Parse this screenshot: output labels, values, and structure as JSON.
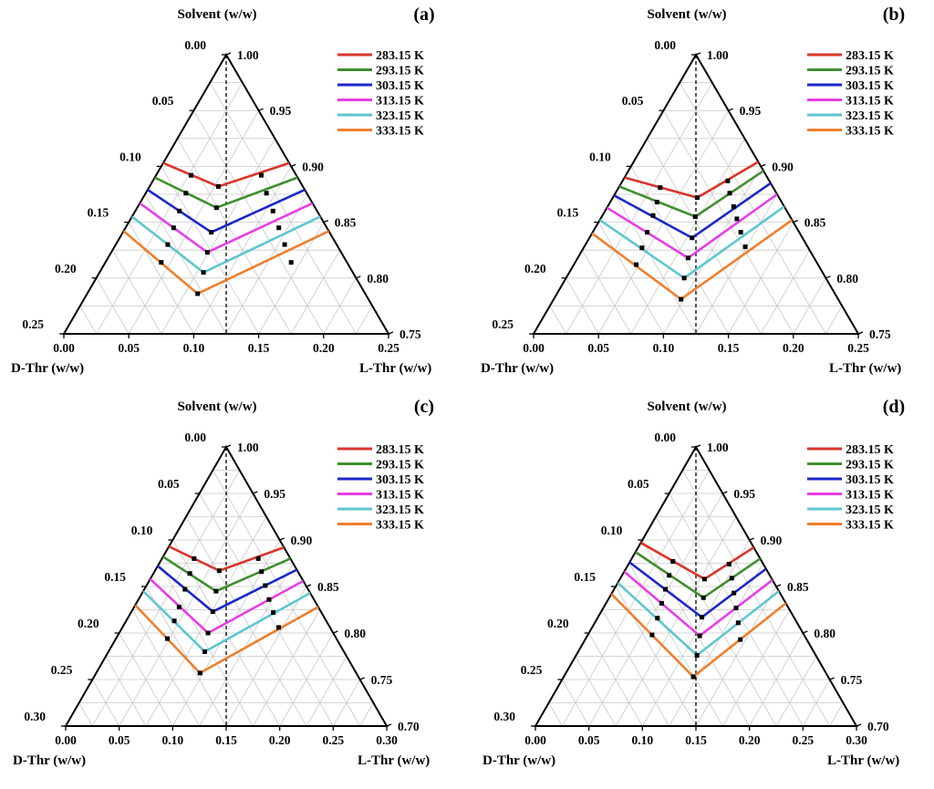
{
  "figure": {
    "temperatures": [
      "283.15 K",
      "293.15 K",
      "303.15 K",
      "313.15 K",
      "323.15 K",
      "333.15 K"
    ],
    "series_colors": [
      "#d9352b",
      "#3f8f2f",
      "#1d27c9",
      "#e63ee6",
      "#5ec6cf",
      "#ee7f2d"
    ],
    "axis_titles": {
      "top": "Solvent (w/w)",
      "left": "D-Thr (w/w)",
      "right": "L-Thr (w/w)"
    }
  },
  "chart_data": [
    {
      "type": "ternary",
      "panel_label": "(a)",
      "axes": {
        "top": "Solvent (w/w)",
        "left": "D-Thr (w/w)",
        "right": "L-Thr (w/w)"
      },
      "max_fraction": 0.25,
      "grid": true,
      "legend_position": "top-right",
      "dashed_line_at": 0.1375,
      "tick_labels": {
        "top_left": [
          "0.00",
          "0.05",
          "0.10",
          "0.15",
          "0.20",
          "0.25"
        ],
        "right": [
          "1.00",
          "0.95",
          "0.90",
          "0.85",
          "0.80",
          "0.75"
        ],
        "bottom": [
          "0.00",
          "0.05",
          "0.10",
          "0.15",
          "0.20",
          "0.25"
        ]
      },
      "series": [
        {
          "name": "283.15 K",
          "color": "#d9352b",
          "left_end": {
            "d": 0.097,
            "l": 0
          },
          "eutectic": {
            "d": 0.065,
            "l": 0.053
          },
          "right_end": {
            "d": 0,
            "l": 0.097
          },
          "points": [
            {
              "d": 0.081,
              "l": 0.027
            },
            {
              "d": 0.027,
              "l": 0.081
            }
          ]
        },
        {
          "name": "293.15 K",
          "color": "#3f8f2f",
          "left_end": {
            "d": 0.11,
            "l": 0
          },
          "eutectic": {
            "d": 0.076,
            "l": 0.061
          },
          "right_end": {
            "d": 0,
            "l": 0.11
          },
          "points": [
            {
              "d": 0.093,
              "l": 0.031
            },
            {
              "d": 0.031,
              "l": 0.093
            }
          ]
        },
        {
          "name": "303.15 K",
          "color": "#1d27c9",
          "left_end": {
            "d": 0.121,
            "l": 0
          },
          "eutectic": {
            "d": 0.091,
            "l": 0.068
          },
          "right_end": {
            "d": 0,
            "l": 0.121
          },
          "points": [
            {
              "d": 0.106,
              "l": 0.034
            },
            {
              "d": 0.034,
              "l": 0.106
            }
          ]
        },
        {
          "name": "313.15 K",
          "color": "#e63ee6",
          "left_end": {
            "d": 0.133,
            "l": 0
          },
          "eutectic": {
            "d": 0.103,
            "l": 0.074
          },
          "right_end": {
            "d": 0,
            "l": 0.133
          },
          "points": [
            {
              "d": 0.118,
              "l": 0.037
            },
            {
              "d": 0.037,
              "l": 0.118
            }
          ]
        },
        {
          "name": "323.15 K",
          "color": "#5ec6cf",
          "left_end": {
            "d": 0.145,
            "l": 0
          },
          "eutectic": {
            "d": 0.115,
            "l": 0.08
          },
          "right_end": {
            "d": 0,
            "l": 0.145
          },
          "points": [
            {
              "d": 0.13,
              "l": 0.04
            },
            {
              "d": 0.04,
              "l": 0.13
            }
          ]
        },
        {
          "name": "333.15 K",
          "color": "#ee7f2d",
          "left_end": {
            "d": 0.158,
            "l": 0
          },
          "eutectic": {
            "d": 0.129,
            "l": 0.085
          },
          "right_end": {
            "d": 0,
            "l": 0.158
          },
          "points": [
            {
              "d": 0.143,
              "l": 0.043
            },
            {
              "d": 0.043,
              "l": 0.143
            }
          ]
        }
      ]
    },
    {
      "type": "ternary",
      "panel_label": "(b)",
      "axes": {
        "top": "Solvent (w/w)",
        "left": "D-Thr (w/w)",
        "right": "L-Thr (w/w)"
      },
      "max_fraction": 0.25,
      "grid": true,
      "legend_position": "top-right",
      "dashed_line_at": 0.1375,
      "tick_labels": {
        "top_left": [
          "0.00",
          "0.05",
          "0.10",
          "0.15",
          "0.20",
          "0.25"
        ],
        "right": [
          "1.00",
          "0.95",
          "0.90",
          "0.85",
          "0.80",
          "0.75"
        ],
        "bottom": [
          "0.00",
          "0.05",
          "0.10",
          "0.15",
          "0.20",
          "0.25"
        ]
      },
      "series": [
        {
          "name": "283.15 K",
          "color": "#d9352b",
          "left_end": {
            "d": 0.11,
            "l": 0
          },
          "eutectic": {
            "d": 0.063,
            "l": 0.065
          },
          "right_end": {
            "d": 0,
            "l": 0.096
          },
          "points": [
            {
              "d": 0.087,
              "l": 0.032
            },
            {
              "d": 0.032,
              "l": 0.081
            }
          ]
        },
        {
          "name": "293.15 K",
          "color": "#3f8f2f",
          "left_end": {
            "d": 0.118,
            "l": 0
          },
          "eutectic": {
            "d": 0.073,
            "l": 0.072
          },
          "right_end": {
            "d": 0,
            "l": 0.104
          },
          "points": [
            {
              "d": 0.096,
              "l": 0.036
            },
            {
              "d": 0.036,
              "l": 0.088
            }
          ]
        },
        {
          "name": "303.15 K",
          "color": "#1d27c9",
          "left_end": {
            "d": 0.126,
            "l": 0
          },
          "eutectic": {
            "d": 0.085,
            "l": 0.079
          },
          "right_end": {
            "d": 0,
            "l": 0.115
          },
          "points": [
            {
              "d": 0.105,
              "l": 0.039
            },
            {
              "d": 0.039,
              "l": 0.097
            }
          ]
        },
        {
          "name": "313.15 K",
          "color": "#e63ee6",
          "left_end": {
            "d": 0.137,
            "l": 0
          },
          "eutectic": {
            "d": 0.097,
            "l": 0.085
          },
          "right_end": {
            "d": 0,
            "l": 0.125
          },
          "points": [
            {
              "d": 0.117,
              "l": 0.042
            },
            {
              "d": 0.042,
              "l": 0.105
            }
          ]
        },
        {
          "name": "323.15 K",
          "color": "#5ec6cf",
          "left_end": {
            "d": 0.148,
            "l": 0
          },
          "eutectic": {
            "d": 0.109,
            "l": 0.091
          },
          "right_end": {
            "d": 0,
            "l": 0.136
          },
          "points": [
            {
              "d": 0.128,
              "l": 0.045
            },
            {
              "d": 0.045,
              "l": 0.114
            }
          ]
        },
        {
          "name": "333.15 K",
          "color": "#ee7f2d",
          "left_end": {
            "d": 0.16,
            "l": 0
          },
          "eutectic": {
            "d": 0.121,
            "l": 0.098
          },
          "right_end": {
            "d": 0,
            "l": 0.148
          },
          "points": [
            {
              "d": 0.14,
              "l": 0.048
            },
            {
              "d": 0.048,
              "l": 0.124
            }
          ]
        }
      ]
    },
    {
      "type": "ternary",
      "panel_label": "(c)",
      "axes": {
        "top": "Solvent (w/w)",
        "left": "D-Thr (w/w)",
        "right": "L-Thr (w/w)"
      },
      "max_fraction": 0.3,
      "grid": true,
      "legend_position": "top-right",
      "dashed_line_at": 0.15,
      "tick_labels": {
        "top_left": [
          "0.00",
          "0.05",
          "0.10",
          "0.15",
          "0.20",
          "0.25",
          "0.30"
        ],
        "right": [
          "1.00",
          "0.95",
          "0.90",
          "0.85",
          "0.80",
          "0.75",
          "0.70"
        ],
        "bottom": [
          "0.00",
          "0.05",
          "0.10",
          "0.15",
          "0.20",
          "0.25",
          "0.30"
        ]
      },
      "series": [
        {
          "name": "283.15 K",
          "color": "#d9352b",
          "left_end": {
            "d": 0.107,
            "l": 0
          },
          "eutectic": {
            "d": 0.073,
            "l": 0.06
          },
          "right_end": {
            "d": 0,
            "l": 0.108
          },
          "points": [
            {
              "d": 0.09,
              "l": 0.03
            },
            {
              "d": 0.03,
              "l": 0.09
            }
          ]
        },
        {
          "name": "293.15 K",
          "color": "#3f8f2f",
          "left_end": {
            "d": 0.118,
            "l": 0
          },
          "eutectic": {
            "d": 0.087,
            "l": 0.068
          },
          "right_end": {
            "d": 0,
            "l": 0.12
          },
          "points": [
            {
              "d": 0.102,
              "l": 0.034
            },
            {
              "d": 0.034,
              "l": 0.1
            }
          ]
        },
        {
          "name": "303.15 K",
          "color": "#1d27c9",
          "left_end": {
            "d": 0.128,
            "l": 0
          },
          "eutectic": {
            "d": 0.101,
            "l": 0.076
          },
          "right_end": {
            "d": 0,
            "l": 0.132
          },
          "points": [
            {
              "d": 0.115,
              "l": 0.038
            },
            {
              "d": 0.038,
              "l": 0.111
            }
          ]
        },
        {
          "name": "313.15 K",
          "color": "#e63ee6",
          "left_end": {
            "d": 0.142,
            "l": 0
          },
          "eutectic": {
            "d": 0.117,
            "l": 0.083
          },
          "right_end": {
            "d": 0,
            "l": 0.144
          },
          "points": [
            {
              "d": 0.13,
              "l": 0.042
            },
            {
              "d": 0.042,
              "l": 0.122
            }
          ]
        },
        {
          "name": "323.15 K",
          "color": "#5ec6cf",
          "left_end": {
            "d": 0.155,
            "l": 0
          },
          "eutectic": {
            "d": 0.13,
            "l": 0.09
          },
          "right_end": {
            "d": 0,
            "l": 0.157
          },
          "points": [
            {
              "d": 0.142,
              "l": 0.045
            },
            {
              "d": 0.045,
              "l": 0.133
            }
          ]
        },
        {
          "name": "333.15 K",
          "color": "#ee7f2d",
          "left_end": {
            "d": 0.17,
            "l": 0
          },
          "eutectic": {
            "d": 0.146,
            "l": 0.097
          },
          "right_end": {
            "d": 0,
            "l": 0.172
          },
          "points": [
            {
              "d": 0.158,
              "l": 0.048
            },
            {
              "d": 0.048,
              "l": 0.146
            }
          ]
        }
      ]
    },
    {
      "type": "ternary",
      "panel_label": "(d)",
      "axes": {
        "top": "Solvent (w/w)",
        "left": "D-Thr (w/w)",
        "right": "L-Thr (w/w)"
      },
      "max_fraction": 0.3,
      "grid": true,
      "legend_position": "top-right",
      "dashed_line_at": 0.15,
      "tick_labels": {
        "top_left": [
          "0.00",
          "0.05",
          "0.10",
          "0.15",
          "0.20",
          "0.25",
          "0.30"
        ],
        "right": [
          "1.00",
          "0.95",
          "0.90",
          "0.85",
          "0.80",
          "0.75",
          "0.70"
        ],
        "bottom": [
          "0.00",
          "0.05",
          "0.10",
          "0.15",
          "0.20",
          "0.25",
          "0.30"
        ]
      },
      "series": [
        {
          "name": "283.15 K",
          "color": "#d9352b",
          "left_end": {
            "d": 0.103,
            "l": 0
          },
          "eutectic": {
            "d": 0.063,
            "l": 0.079
          },
          "right_end": {
            "d": 0,
            "l": 0.108
          },
          "points": [
            {
              "d": 0.083,
              "l": 0.04
            },
            {
              "d": 0.032,
              "l": 0.094
            }
          ]
        },
        {
          "name": "293.15 K",
          "color": "#3f8f2f",
          "left_end": {
            "d": 0.113,
            "l": 0
          },
          "eutectic": {
            "d": 0.074,
            "l": 0.088
          },
          "right_end": {
            "d": 0,
            "l": 0.12
          },
          "points": [
            {
              "d": 0.094,
              "l": 0.044
            },
            {
              "d": 0.037,
              "l": 0.104
            }
          ]
        },
        {
          "name": "303.15 K",
          "color": "#1d27c9",
          "left_end": {
            "d": 0.124,
            "l": 0
          },
          "eutectic": {
            "d": 0.086,
            "l": 0.097
          },
          "right_end": {
            "d": 0,
            "l": 0.131
          },
          "points": [
            {
              "d": 0.105,
              "l": 0.048
            },
            {
              "d": 0.043,
              "l": 0.114
            }
          ]
        },
        {
          "name": "313.15 K",
          "color": "#e63ee6",
          "left_end": {
            "d": 0.134,
            "l": 0
          },
          "eutectic": {
            "d": 0.098,
            "l": 0.105
          },
          "right_end": {
            "d": 0,
            "l": 0.143
          },
          "points": [
            {
              "d": 0.116,
              "l": 0.052
            },
            {
              "d": 0.049,
              "l": 0.124
            }
          ]
        },
        {
          "name": "323.15 K",
          "color": "#5ec6cf",
          "left_end": {
            "d": 0.146,
            "l": 0
          },
          "eutectic": {
            "d": 0.111,
            "l": 0.113
          },
          "right_end": {
            "d": 0,
            "l": 0.155
          },
          "points": [
            {
              "d": 0.128,
              "l": 0.056
            },
            {
              "d": 0.055,
              "l": 0.134
            }
          ]
        },
        {
          "name": "333.15 K",
          "color": "#ee7f2d",
          "left_end": {
            "d": 0.158,
            "l": 0
          },
          "eutectic": {
            "d": 0.126,
            "l": 0.121
          },
          "right_end": {
            "d": 0,
            "l": 0.168
          },
          "points": [
            {
              "d": 0.142,
              "l": 0.06
            },
            {
              "d": 0.062,
              "l": 0.145
            }
          ]
        }
      ]
    }
  ]
}
